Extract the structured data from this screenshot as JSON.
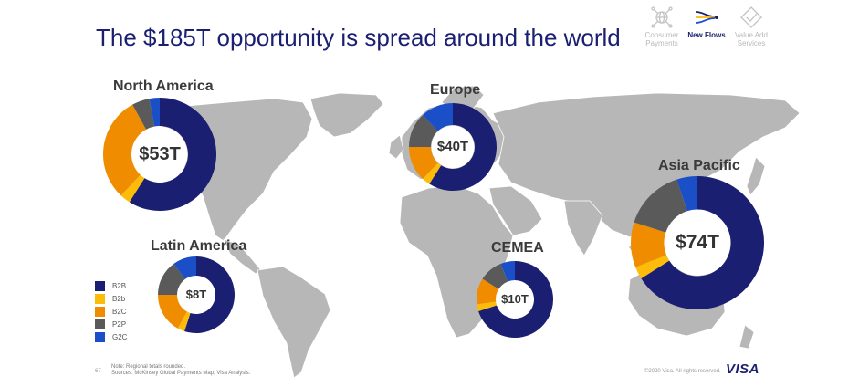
{
  "title": "The $185T opportunity is spread around the world",
  "nav": [
    {
      "label": "Consumer Payments",
      "icon": "globe-network-icon",
      "active": false
    },
    {
      "label": "New Flows",
      "icon": "flows-icon",
      "active": true
    },
    {
      "label": "Value Add Services",
      "icon": "diamond-check-icon",
      "active": false
    }
  ],
  "colors": {
    "B2B": "#1a1f71",
    "B2b": "#fdbb0a",
    "B2C": "#f08c00",
    "P2P": "#5a5a5a",
    "G2C": "#1a4fc8",
    "map": "#b7b7b7"
  },
  "legend": [
    "B2B",
    "B2b",
    "B2C",
    "P2P",
    "G2C"
  ],
  "chart_data": {
    "type": "pie",
    "categories": [
      "B2B",
      "B2b",
      "B2C",
      "P2P",
      "G2C"
    ],
    "series": [
      {
        "name": "North America",
        "total": "$53T",
        "values": [
          59,
          3,
          30,
          5,
          3
        ]
      },
      {
        "name": "Europe",
        "total": "$40T",
        "values": [
          59,
          3,
          13,
          13,
          12
        ]
      },
      {
        "name": "Asia Pacific",
        "total": "$74T",
        "values": [
          66,
          3,
          11,
          15,
          5
        ]
      },
      {
        "name": "Latin America",
        "total": "$8T",
        "values": [
          55,
          3,
          17,
          15,
          10
        ]
      },
      {
        "name": "CEMEA",
        "total": "$10T",
        "values": [
          70,
          3,
          11,
          10,
          6
        ]
      }
    ]
  },
  "footer": {
    "page_number": "67",
    "note_line1": "Note: Regional totals rounded.",
    "note_line2": "Sources: McKinsey Global Payments Map; Visa Analysis.",
    "copyright": "©2020 Visa. All rights reserved.",
    "logo_text": "VISA"
  }
}
